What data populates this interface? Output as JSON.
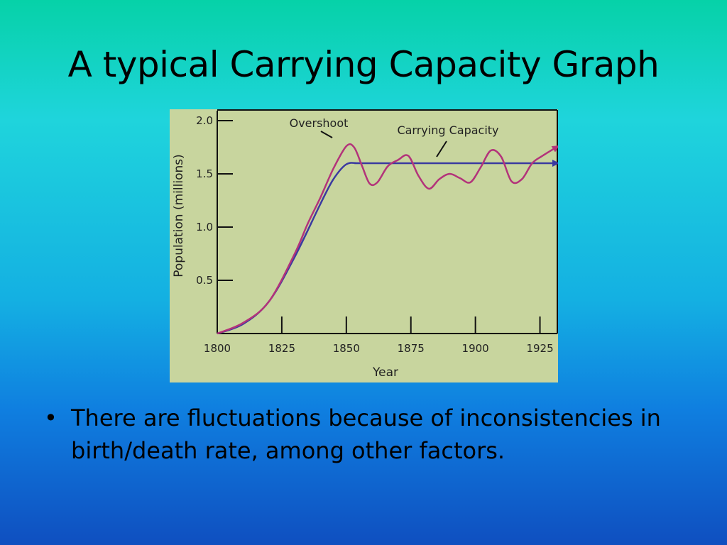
{
  "slide": {
    "title": "A typical Carrying Capacity Graph",
    "bullet_symbol": "•",
    "bullet_text": "There are fluctuations because of inconsistencies in birth/death rate, among other factors."
  },
  "colors": {
    "background_top": "#06d2a8",
    "background_bottom": "#0f4fc0",
    "plot_background": "#c8d59e",
    "population_line": "#b3337a",
    "capacity_line": "#3b3aa0"
  },
  "chart_data": {
    "type": "line",
    "title": "",
    "xlabel": "Year",
    "ylabel": "Population (millions)",
    "xlim": [
      1800,
      1932
    ],
    "ylim": [
      0,
      2.0
    ],
    "x_ticks": [
      1800,
      1825,
      1850,
      1875,
      1900,
      1925
    ],
    "y_ticks": [
      0.5,
      1.0,
      1.5,
      2.0
    ],
    "y_tick_labels": [
      "0.5",
      "1.0",
      "1.5",
      "2.0"
    ],
    "grid": false,
    "annotations": [
      {
        "text": "Overshoot",
        "points_to": [
          1851,
          1.73
        ]
      },
      {
        "text": "Carrying Capacity",
        "points_to": [
          1888,
          1.6
        ]
      }
    ],
    "series": [
      {
        "key": "population",
        "x": [
          1800,
          1810,
          1820,
          1830,
          1835,
          1840,
          1845,
          1850,
          1853,
          1856,
          1859,
          1862,
          1866,
          1870,
          1874,
          1878,
          1882,
          1886,
          1890,
          1894,
          1898,
          1902,
          1906,
          1910,
          1914,
          1918,
          1922,
          1926,
          1932
        ],
        "y": [
          0.0,
          0.1,
          0.3,
          0.75,
          1.03,
          1.28,
          1.55,
          1.76,
          1.75,
          1.58,
          1.41,
          1.42,
          1.57,
          1.63,
          1.67,
          1.48,
          1.36,
          1.45,
          1.5,
          1.46,
          1.42,
          1.56,
          1.72,
          1.66,
          1.43,
          1.45,
          1.6,
          1.67,
          1.76
        ]
      },
      {
        "key": "carrying_capacity",
        "x": [
          1800,
          1810,
          1820,
          1830,
          1840,
          1845,
          1850,
          1855,
          1860,
          1932
        ],
        "y": [
          0.0,
          0.09,
          0.3,
          0.72,
          1.22,
          1.45,
          1.59,
          1.6,
          1.6,
          1.6
        ]
      }
    ]
  }
}
